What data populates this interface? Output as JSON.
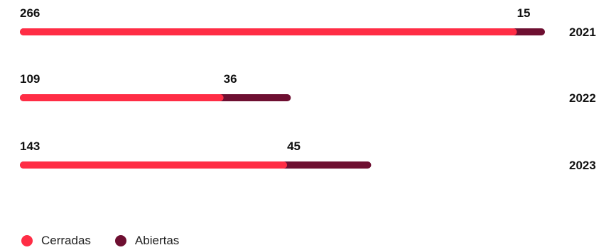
{
  "chart_data": {
    "type": "bar",
    "orientation": "horizontal",
    "stacked": true,
    "categories": [
      "2021",
      "2022",
      "2023"
    ],
    "series": [
      {
        "name": "Cerradas",
        "values": [
          266,
          109,
          143
        ],
        "color": "#ff2d45"
      },
      {
        "name": "Abiertas",
        "values": [
          15,
          36,
          45
        ],
        "color": "#6e0f31"
      }
    ],
    "grid": false,
    "legend_position": "bottom-left"
  }
}
